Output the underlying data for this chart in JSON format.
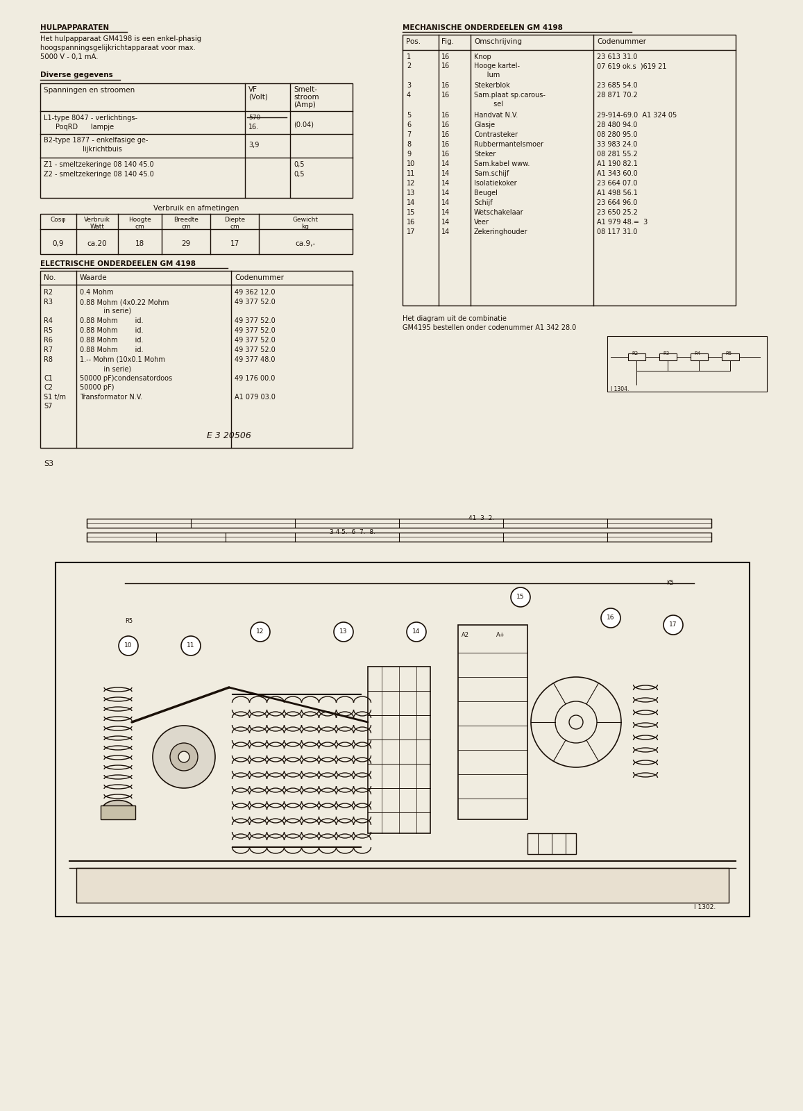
{
  "bg_color": "#f0ece0",
  "text_color": "#1a1008",
  "hulp_title": "HULPAPPARATEN",
  "hulp_desc": [
    "Het hulpapparaat GM4198 is een enkel-phasig",
    "hoogspanningsgelijkrichtapparaat voor max.",
    "5000 V - 0,1 mA."
  ],
  "diverse_title": "Diverse gegevens",
  "mech_title": "MECHANISCHE ONDERDEELEN GM 4198",
  "elec_title": "ELECTRISCHE ONDERDEELEN GM 4198",
  "mech_note1": "Het diagram uit de combinatie",
  "mech_note2": "GM4195 bestellen onder codenummer A1 342 28.0",
  "diagram_note": "I 1302.",
  "diagram_note2": "I 1304."
}
